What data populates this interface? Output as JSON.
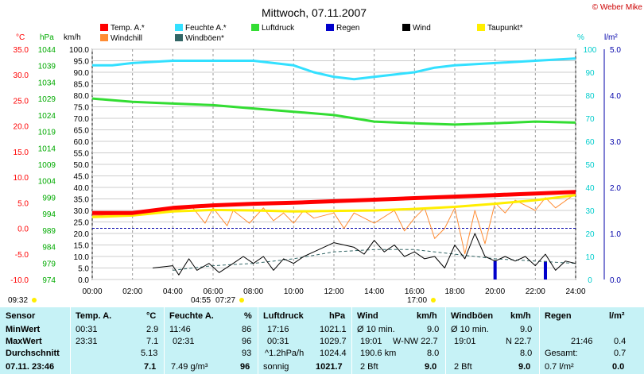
{
  "chart_data": {
    "type": "line",
    "title": "Mittwoch, 07.11.2007",
    "copyright": "© Weber Mike",
    "x_ticks": [
      "00:00",
      "02:00",
      "04:00",
      "06:00",
      "08:00",
      "10:00",
      "12:00",
      "14:00",
      "16:00",
      "18:00",
      "20:00",
      "22:00",
      "24:00"
    ],
    "x_range_hours": [
      0,
      24
    ],
    "axes": {
      "temp": {
        "unit": "°C",
        "ticks": [
          "35.0",
          "30.0",
          "25.0",
          "20.0",
          "15.0",
          "10.0",
          "5.0",
          "0.0",
          "-5.0",
          "-10.0"
        ],
        "range": [
          -10,
          35
        ],
        "color": "#ff0000"
      },
      "pressure": {
        "unit": "hPa",
        "ticks": [
          "1044",
          "1039",
          "1034",
          "1029",
          "1024",
          "1019",
          "1014",
          "1009",
          "1004",
          "999",
          "994",
          "989",
          "984",
          "979",
          "974"
        ],
        "range": [
          974,
          1044
        ],
        "color": "#00aa00"
      },
      "wind": {
        "unit": "km/h",
        "ticks": [
          "100.0",
          "95.0",
          "90.0",
          "85.0",
          "80.0",
          "75.0",
          "70.0",
          "65.0",
          "60.0",
          "55.0",
          "50.0",
          "45.0",
          "40.0",
          "35.0",
          "30.0",
          "25.0",
          "20.0",
          "15.0",
          "10.0",
          "5.0",
          "0.0"
        ],
        "range": [
          0,
          100
        ],
        "color": "#000000"
      },
      "humidity": {
        "unit": "%",
        "ticks": [
          "100",
          "90",
          "80",
          "70",
          "60",
          "50",
          "40",
          "30",
          "20",
          "10",
          "0"
        ],
        "range": [
          0,
          100
        ],
        "color": "#00cccc"
      },
      "rain": {
        "unit": "l/m²",
        "ticks": [
          "5.0",
          "4.0",
          "3.0",
          "2.0",
          "1.0",
          "0.0"
        ],
        "range": [
          0,
          5
        ],
        "color": "#0000aa"
      }
    },
    "legend": [
      {
        "name": "Temp. A.*",
        "color": "#ff0000"
      },
      {
        "name": "Feuchte A.*",
        "color": "#33e0ff"
      },
      {
        "name": "Luftdruck",
        "color": "#33dd33"
      },
      {
        "name": "Regen",
        "color": "#0000cc"
      },
      {
        "name": "Wind",
        "color": "#000000"
      },
      {
        "name": "Taupunkt*",
        "color": "#ffee00"
      },
      {
        "name": "Windchill",
        "color": "#ff8c33"
      },
      {
        "name": "Windböen*",
        "color": "#336666"
      }
    ],
    "series": [
      {
        "name": "Feuchte A.*",
        "axis": "humidity",
        "points": [
          [
            0,
            93
          ],
          [
            1,
            93
          ],
          [
            2,
            94
          ],
          [
            4,
            95
          ],
          [
            6,
            95
          ],
          [
            8,
            95
          ],
          [
            9,
            94
          ],
          [
            10,
            93
          ],
          [
            11,
            90
          ],
          [
            12,
            88
          ],
          [
            13,
            87
          ],
          [
            14,
            88
          ],
          [
            15,
            89
          ],
          [
            16,
            90
          ],
          [
            17,
            92
          ],
          [
            18,
            93
          ],
          [
            20,
            94
          ],
          [
            22,
            95
          ],
          [
            24,
            96
          ]
        ]
      },
      {
        "name": "Luftdruck",
        "axis": "pressure",
        "points": [
          [
            0,
            1029
          ],
          [
            2,
            1028
          ],
          [
            4,
            1027.5
          ],
          [
            6,
            1027
          ],
          [
            8,
            1026
          ],
          [
            10,
            1025
          ],
          [
            12,
            1024
          ],
          [
            14,
            1022
          ],
          [
            16,
            1021.5
          ],
          [
            18,
            1021.1
          ],
          [
            20,
            1021.5
          ],
          [
            22,
            1022
          ],
          [
            24,
            1021.7
          ]
        ]
      },
      {
        "name": "Temp. A.*",
        "axis": "temp",
        "points": [
          [
            0,
            3
          ],
          [
            2,
            3
          ],
          [
            4,
            4
          ],
          [
            6,
            4.5
          ],
          [
            8,
            4.8
          ],
          [
            10,
            5
          ],
          [
            12,
            5.3
          ],
          [
            14,
            5.6
          ],
          [
            16,
            5.9
          ],
          [
            18,
            6.2
          ],
          [
            20,
            6.5
          ],
          [
            22,
            6.8
          ],
          [
            24,
            7.1
          ]
        ]
      },
      {
        "name": "Taupunkt*",
        "axis": "temp",
        "points": [
          [
            0,
            2.2
          ],
          [
            2,
            2.5
          ],
          [
            4,
            3.3
          ],
          [
            6,
            3.6
          ],
          [
            8,
            3.5
          ],
          [
            10,
            3.3
          ],
          [
            12,
            3.4
          ],
          [
            14,
            3.5
          ],
          [
            16,
            3.8
          ],
          [
            18,
            4.2
          ],
          [
            20,
            4.8
          ],
          [
            22,
            5.5
          ],
          [
            24,
            6.5
          ]
        ]
      },
      {
        "name": "Windchill",
        "axis": "temp",
        "points": [
          [
            0,
            2.5
          ],
          [
            2,
            2.8
          ],
          [
            4,
            3.5
          ],
          [
            5,
            4
          ],
          [
            5.6,
            1
          ],
          [
            6,
            4
          ],
          [
            6.7,
            0.5
          ],
          [
            7,
            3.5
          ],
          [
            7.8,
            1
          ],
          [
            8.5,
            4
          ],
          [
            9,
            1.5
          ],
          [
            9.5,
            3
          ],
          [
            10,
            1
          ],
          [
            10.5,
            3.5
          ],
          [
            11,
            2
          ],
          [
            12,
            3
          ],
          [
            12.5,
            0
          ],
          [
            13,
            3
          ],
          [
            14,
            1
          ],
          [
            15,
            3.5
          ],
          [
            15.5,
            -0.5
          ],
          [
            16,
            2
          ],
          [
            16.5,
            4
          ],
          [
            17,
            -2
          ],
          [
            17.5,
            0
          ],
          [
            18,
            4
          ],
          [
            18.5,
            -5
          ],
          [
            19,
            3.5
          ],
          [
            19.5,
            -3
          ],
          [
            20,
            5
          ],
          [
            20.5,
            3
          ],
          [
            21,
            5.5
          ],
          [
            22,
            3.5
          ],
          [
            22.5,
            6
          ],
          [
            23,
            4
          ],
          [
            24,
            6.8
          ]
        ]
      },
      {
        "name": "Wind",
        "axis": "wind",
        "points": [
          [
            3,
            5
          ],
          [
            4,
            6
          ],
          [
            4.3,
            2
          ],
          [
            4.8,
            9
          ],
          [
            5.2,
            4
          ],
          [
            5.8,
            7
          ],
          [
            6.3,
            3
          ],
          [
            7,
            7
          ],
          [
            7.5,
            10
          ],
          [
            8,
            7
          ],
          [
            8.5,
            10
          ],
          [
            9,
            4
          ],
          [
            9.5,
            9
          ],
          [
            10,
            7
          ],
          [
            10.5,
            10
          ],
          [
            11,
            12
          ],
          [
            12,
            16
          ],
          [
            12.5,
            15
          ],
          [
            13,
            14
          ],
          [
            13.5,
            11
          ],
          [
            14,
            17
          ],
          [
            14.5,
            12
          ],
          [
            15,
            15
          ],
          [
            15.5,
            10
          ],
          [
            16,
            12
          ],
          [
            16.5,
            9
          ],
          [
            17,
            10
          ],
          [
            17.5,
            5
          ],
          [
            18,
            15
          ],
          [
            18.5,
            9
          ],
          [
            19,
            20
          ],
          [
            19.5,
            10
          ],
          [
            20,
            8
          ],
          [
            20.5,
            10
          ],
          [
            21,
            8
          ],
          [
            21.5,
            10
          ],
          [
            22,
            6
          ],
          [
            22.5,
            11
          ],
          [
            23,
            4
          ],
          [
            23.5,
            8
          ],
          [
            24,
            7
          ]
        ]
      },
      {
        "name": "Windböen*",
        "axis": "wind",
        "points": [
          [
            4,
            4
          ],
          [
            6,
            6
          ],
          [
            8,
            7
          ],
          [
            10,
            9
          ],
          [
            12,
            12
          ],
          [
            14,
            13
          ],
          [
            16,
            13
          ],
          [
            18,
            11
          ],
          [
            20,
            9
          ],
          [
            22,
            8
          ],
          [
            24,
            7
          ]
        ]
      }
    ],
    "rain_bars": [
      {
        "x": 20.0,
        "value": 0.4
      },
      {
        "x": 22.5,
        "value": 0.4
      }
    ],
    "reference_line_temp": 0,
    "bottom_marks": {
      "left": "09:32",
      "middle": "04:55",
      "middle2": "07:27",
      "right": "17:00"
    }
  },
  "table": {
    "headers": {
      "sensor": "Sensor",
      "temp": "Temp. A.",
      "temp_unit": "°C",
      "hum": "Feuchte A.",
      "hum_unit": "%",
      "press": "Luftdruck",
      "press_unit": "hPa",
      "wind": "Wind",
      "wind_unit": "km/h",
      "gust": "Windböen",
      "gust_unit": "km/h",
      "rain": "Regen",
      "rain_unit": "l/m²"
    },
    "rows": {
      "min": {
        "label": "MinWert",
        "temp_time": "00:31",
        "temp_val": "2.9",
        "hum_time": "11:46",
        "hum_val": "86",
        "press_time": "17:16",
        "press_val": "1021.1",
        "wind_time": "Ø 10 min.",
        "wind_val": "9.0",
        "gust_time": "Ø 10 min.",
        "gust_val": "9.0"
      },
      "max": {
        "label": "MaxWert",
        "temp_time": "23:31",
        "temp_val": "7.1",
        "hum_time": "02:31",
        "hum_val": "96",
        "press_time": "00:31",
        "press_val": "1029.7",
        "wind_time": "19:01",
        "wind_dir": "W-NW 22.7",
        "gust_time": "19:01",
        "gust_dir": "N 22.7",
        "rain_time": "21:46",
        "rain_val": "0.4"
      },
      "avg": {
        "label": "Durchschnitt",
        "temp_val": "5.13",
        "hum_val": "93",
        "press_time": "^1.2hPa/h",
        "press_val": "1024.4",
        "wind_time": "190.6 km",
        "wind_val": "8.0",
        "gust_val": "8.0",
        "rain_time": "Gesamt:",
        "rain_val": "0.7"
      },
      "current": {
        "label": "07.11. 23:46",
        "temp_val": "7.1",
        "hum_time": "7.49 g/m³",
        "hum_val": "96",
        "press_time": "sonnig",
        "press_val": "1021.7",
        "wind_time": "2 Bft",
        "wind_val": "9.0",
        "gust_time": "2 Bft",
        "gust_val": "9.0",
        "rain_time": "0.7 l/m²",
        "rain_val": "0.0"
      }
    }
  }
}
